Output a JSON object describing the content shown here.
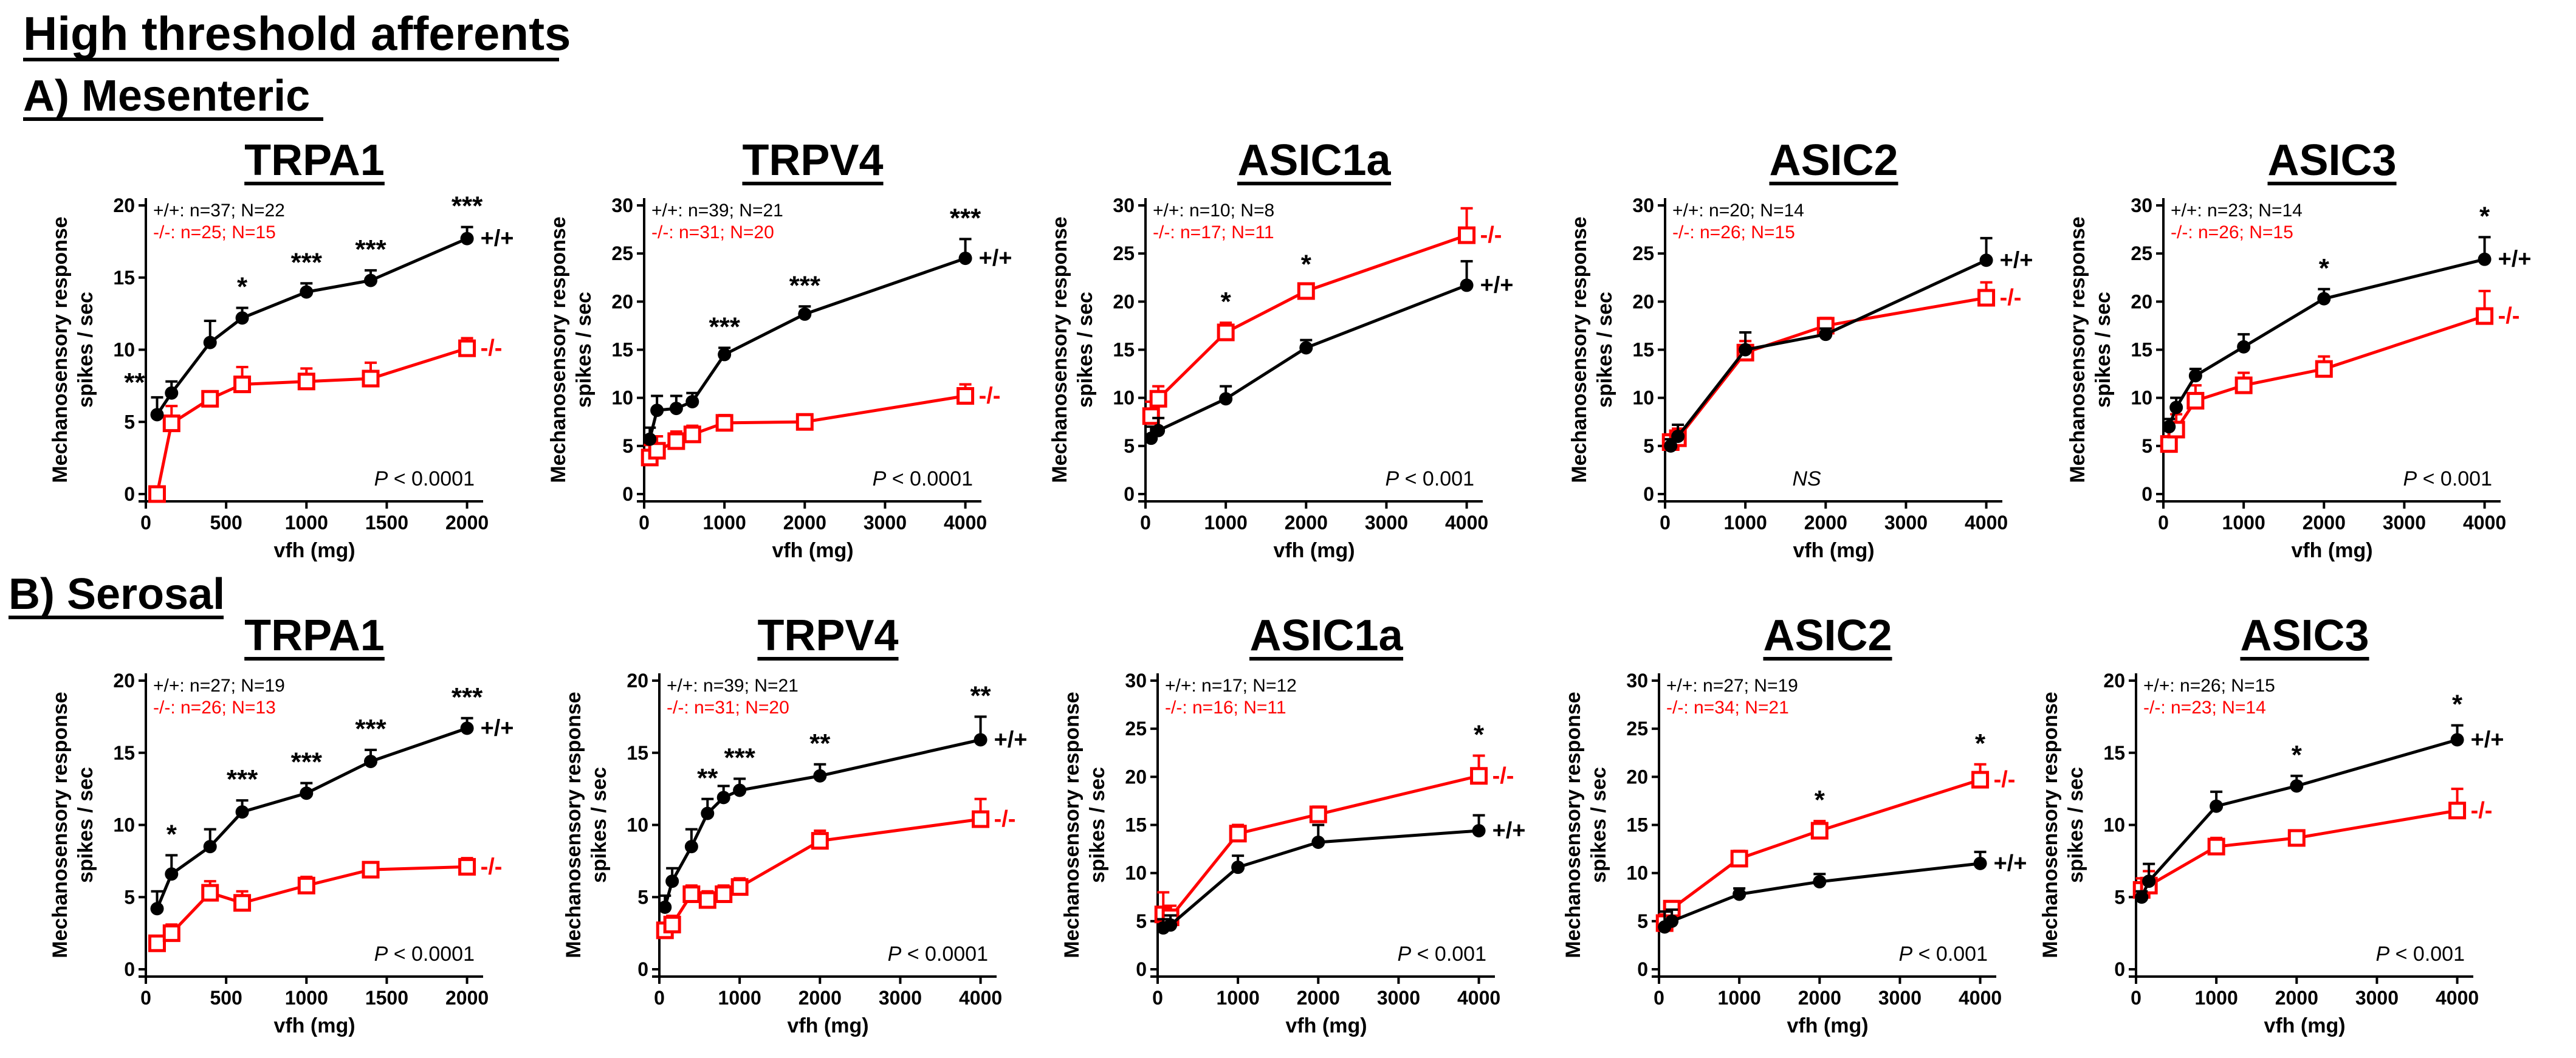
{
  "figure": {
    "title": "High threshold afferents",
    "sections": [
      "A) Mesenteric",
      "B) Serosal"
    ]
  },
  "colors": {
    "wt": "#000000",
    "ko": "#ff0000"
  },
  "chart_data": [
    {
      "type": "line",
      "section": "A) Mesenteric",
      "title": "TRPA1",
      "xlabel": "vfh (mg)",
      "ylabel": "Mechanosensory response\nspikes / sec",
      "xlim": [
        0,
        2100
      ],
      "xticks": [
        "0",
        "500",
        "1000",
        "1500",
        "2000"
      ],
      "xtick_values": [
        0,
        500,
        1000,
        1500,
        2000
      ],
      "ylim": [
        0,
        20
      ],
      "yticks": [
        "0",
        "5",
        "10",
        "15",
        "20"
      ],
      "ytick_values": [
        0,
        5,
        10,
        15,
        20
      ],
      "n_wt": "+/+: n=37; N=22",
      "n_ko": "-/-: n=25; N=15",
      "pvalue_prefix": "P",
      "pvalue_rest": " < 0.0001",
      "series": [
        {
          "name": "+/+",
          "x": [
            70,
            160,
            400,
            600,
            1000,
            1400,
            2000
          ],
          "y": [
            5.5,
            7,
            10.5,
            12.2,
            14,
            14.8,
            17.7
          ],
          "err": [
            1.2,
            0.8,
            1.5,
            0.7,
            0.6,
            0.7,
            0.8
          ]
        },
        {
          "name": "-/-",
          "x": [
            70,
            160,
            400,
            600,
            1000,
            1400,
            2000
          ],
          "y": [
            0,
            4.9,
            6.6,
            7.6,
            7.8,
            8,
            10.1
          ],
          "err": [
            0,
            1.2,
            0.5,
            1.2,
            0.9,
            1.1,
            0.7
          ]
        }
      ],
      "sig": [
        {
          "x": 70,
          "label": "**"
        },
        {
          "x": 600,
          "label": "*"
        },
        {
          "x": 1000,
          "label": "***"
        },
        {
          "x": 1400,
          "label": "***"
        },
        {
          "x": 2000,
          "label": "***"
        }
      ]
    },
    {
      "type": "line",
      "section": "A) Mesenteric",
      "title": "TRPV4",
      "xlabel": "vfh (mg)",
      "ylabel": "Mechanosensory response\nspikes / sec",
      "xlim": [
        0,
        4200
      ],
      "xticks": [
        "0",
        "1000",
        "2000",
        "3000",
        "4000"
      ],
      "xtick_values": [
        0,
        1000,
        2000,
        3000,
        4000
      ],
      "ylim": [
        0,
        30
      ],
      "yticks": [
        "0",
        "5",
        "10",
        "15",
        "20",
        "25",
        "30"
      ],
      "ytick_values": [
        0,
        5,
        10,
        15,
        20,
        25,
        30
      ],
      "n_wt": "+/+: n=39; N=21",
      "n_ko": "-/-: n=31; N=20",
      "pvalue_prefix": "P",
      "pvalue_rest": " < 0.0001",
      "series": [
        {
          "name": "+/+",
          "x": [
            70,
            160,
            400,
            600,
            1000,
            2000,
            4000
          ],
          "y": [
            5.7,
            8.7,
            8.9,
            9.6,
            14.5,
            18.7,
            24.5
          ],
          "err": [
            1.2,
            1.5,
            1.3,
            0.9,
            0.7,
            0.8,
            2
          ]
        },
        {
          "name": "-/-",
          "x": [
            70,
            160,
            400,
            600,
            1000,
            2000,
            4000
          ],
          "y": [
            3.8,
            4.5,
            5.5,
            6.2,
            7.4,
            7.5,
            10.2
          ],
          "err": [
            1.3,
            1.5,
            1,
            0.9,
            0.8,
            0.6,
            1.2
          ]
        }
      ],
      "sig": [
        {
          "x": 1000,
          "label": "***"
        },
        {
          "x": 2000,
          "label": "***"
        },
        {
          "x": 4000,
          "label": "***"
        }
      ]
    },
    {
      "type": "line",
      "section": "A) Mesenteric",
      "title": "ASIC1a",
      "xlabel": "vfh (mg)",
      "ylabel": "Mechanosensory response\nspikes / sec",
      "xlim": [
        0,
        4200
      ],
      "xticks": [
        "0",
        "1000",
        "2000",
        "3000",
        "4000"
      ],
      "xtick_values": [
        0,
        1000,
        2000,
        3000,
        4000
      ],
      "ylim": [
        0,
        30
      ],
      "yticks": [
        "0",
        "5",
        "10",
        "15",
        "20",
        "25",
        "30"
      ],
      "ytick_values": [
        0,
        5,
        10,
        15,
        20,
        25,
        30
      ],
      "n_wt": "+/+: n=10; N=8",
      "n_ko": "-/-: n=17; N=11",
      "pvalue_prefix": "P",
      "pvalue_rest": " < 0.001",
      "series": [
        {
          "name": "+/+",
          "x": [
            70,
            160,
            1000,
            2000,
            4000
          ],
          "y": [
            5.8,
            6.6,
            9.9,
            15.2,
            21.7
          ],
          "err": [
            1.2,
            1.3,
            1.3,
            0.8,
            2.5
          ]
        },
        {
          "name": "-/-",
          "x": [
            70,
            160,
            1000,
            2000,
            4000
          ],
          "y": [
            8.1,
            9.9,
            16.8,
            21.1,
            26.9
          ],
          "err": [
            1.5,
            1.3,
            1,
            0.6,
            2.8
          ]
        }
      ],
      "sig": [
        {
          "x": 1000,
          "label": "*"
        },
        {
          "x": 2000,
          "label": "*"
        }
      ]
    },
    {
      "type": "line",
      "section": "A) Mesenteric",
      "title": "ASIC2",
      "xlabel": "vfh (mg)",
      "ylabel": "Mechanosensory response\nspikes / sec",
      "xlim": [
        0,
        4200
      ],
      "xticks": [
        "0",
        "1000",
        "2000",
        "3000",
        "4000"
      ],
      "xtick_values": [
        0,
        1000,
        2000,
        3000,
        4000
      ],
      "ylim": [
        0,
        30
      ],
      "yticks": [
        "0",
        "5",
        "10",
        "15",
        "20",
        "25",
        "30"
      ],
      "ytick_values": [
        0,
        5,
        10,
        15,
        20,
        25,
        30
      ],
      "n_wt": "+/+: n=20; N=14",
      "n_ko": "-/-: n=26; N=15",
      "pvalue_prefix": "NS",
      "pvalue_rest": "",
      "series": [
        {
          "name": "+/+",
          "x": [
            70,
            160,
            1000,
            2000,
            4000
          ],
          "y": [
            5,
            6,
            15,
            16.6,
            24.3
          ],
          "err": [
            0.7,
            1.2,
            1.8,
            0.6,
            2.3
          ]
        },
        {
          "name": "-/-",
          "x": [
            70,
            160,
            1000,
            2000,
            4000
          ],
          "y": [
            5.4,
            5.8,
            14.7,
            17.5,
            20.4
          ],
          "err": [
            0.8,
            1,
            1.2,
            0.8,
            1.6
          ]
        }
      ],
      "sig": []
    },
    {
      "type": "line",
      "section": "A) Mesenteric",
      "title": "ASIC3",
      "xlabel": "vfh (mg)",
      "ylabel": "Mechanosensory response\nspikes / sec",
      "xlim": [
        0,
        4200
      ],
      "xticks": [
        "0",
        "1000",
        "2000",
        "3000",
        "4000"
      ],
      "xtick_values": [
        0,
        1000,
        2000,
        3000,
        4000
      ],
      "ylim": [
        0,
        30
      ],
      "yticks": [
        "0",
        "5",
        "10",
        "15",
        "20",
        "25",
        "30"
      ],
      "ytick_values": [
        0,
        5,
        10,
        15,
        20,
        25,
        30
      ],
      "n_wt": "+/+: n=23; N=14",
      "n_ko": "-/-: n=26; N=15",
      "pvalue_prefix": "P",
      "pvalue_rest": " < 0.001",
      "series": [
        {
          "name": "+/+",
          "x": [
            70,
            160,
            400,
            1000,
            2000,
            4000
          ],
          "y": [
            7,
            9,
            12.3,
            15.3,
            20.3,
            24.4
          ],
          "err": [
            0.8,
            1,
            0.7,
            1.3,
            1,
            2.3
          ]
        },
        {
          "name": "-/-",
          "x": [
            70,
            160,
            400,
            1000,
            2000,
            4000
          ],
          "y": [
            5.2,
            6.7,
            9.7,
            11.3,
            13,
            18.5
          ],
          "err": [
            0.8,
            1.6,
            1.6,
            1.3,
            1.3,
            2.6
          ]
        }
      ],
      "sig": [
        {
          "x": 2000,
          "label": "*"
        },
        {
          "x": 4000,
          "label": "*"
        }
      ]
    },
    {
      "type": "line",
      "section": "B) Serosal",
      "title": "TRPA1",
      "xlabel": "vfh (mg)",
      "ylabel": "Mechanosensory response\nspikes / sec",
      "xlim": [
        0,
        2100
      ],
      "xticks": [
        "0",
        "500",
        "1000",
        "1500",
        "2000"
      ],
      "xtick_values": [
        0,
        500,
        1000,
        1500,
        2000
      ],
      "ylim": [
        0,
        20
      ],
      "yticks": [
        "0",
        "5",
        "10",
        "15",
        "20"
      ],
      "ytick_values": [
        0,
        5,
        10,
        15,
        20
      ],
      "n_wt": "+/+: n=27; N=19",
      "n_ko": "-/-: n=26; N=13",
      "pvalue_prefix": "P",
      "pvalue_rest": " < 0.0001",
      "series": [
        {
          "name": "+/+",
          "x": [
            70,
            160,
            400,
            600,
            1000,
            1400,
            2000
          ],
          "y": [
            4.2,
            6.6,
            8.5,
            10.9,
            12.2,
            14.4,
            16.7
          ],
          "err": [
            1.2,
            1.3,
            1.2,
            0.8,
            0.7,
            0.8,
            0.7
          ]
        },
        {
          "name": "-/-",
          "x": [
            70,
            160,
            400,
            600,
            1000,
            1400,
            2000
          ],
          "y": [
            1.8,
            2.5,
            5.3,
            4.6,
            5.8,
            6.9,
            7.1
          ],
          "err": [
            0.5,
            0.6,
            0.8,
            0.8,
            0.6,
            0.5,
            0.6
          ]
        }
      ],
      "sig": [
        {
          "x": 160,
          "label": "*"
        },
        {
          "x": 600,
          "label": "***"
        },
        {
          "x": 1000,
          "label": "***"
        },
        {
          "x": 1400,
          "label": "***"
        },
        {
          "x": 2000,
          "label": "***"
        }
      ]
    },
    {
      "type": "line",
      "section": "B) Serosal",
      "title": "TRPV4",
      "xlabel": "vfh (mg)",
      "ylabel": "Mechanosensory response\nspikes / sec",
      "xlim": [
        0,
        4200
      ],
      "xticks": [
        "0",
        "1000",
        "2000",
        "3000",
        "4000"
      ],
      "xtick_values": [
        0,
        1000,
        2000,
        3000,
        4000
      ],
      "ylim": [
        0,
        20
      ],
      "yticks": [
        "0",
        "5",
        "10",
        "15",
        "20"
      ],
      "ytick_values": [
        0,
        5,
        10,
        15,
        20
      ],
      "n_wt": "+/+: n=39; N=21",
      "n_ko": "-/-: n=31; N=20",
      "pvalue_prefix": "P",
      "pvalue_rest": " < 0.0001",
      "series": [
        {
          "name": "+/+",
          "x": [
            70,
            160,
            400,
            600,
            800,
            1000,
            2000,
            4000
          ],
          "y": [
            4.3,
            6.1,
            8.5,
            10.8,
            11.9,
            12.4,
            13.4,
            15.9
          ],
          "err": [
            0.8,
            0.9,
            1.2,
            1,
            0.8,
            0.8,
            0.8,
            1.6
          ]
        },
        {
          "name": "-/-",
          "x": [
            70,
            160,
            400,
            600,
            800,
            1000,
            2000,
            4000
          ],
          "y": [
            2.7,
            3.1,
            5.2,
            4.8,
            5.2,
            5.7,
            8.9,
            10.4
          ],
          "err": [
            0.5,
            0.6,
            0.6,
            0.6,
            0.6,
            0.6,
            0.7,
            1.4
          ]
        }
      ],
      "sig": [
        {
          "x": 600,
          "label": "**"
        },
        {
          "x": 1000,
          "label": "***"
        },
        {
          "x": 2000,
          "label": "**"
        },
        {
          "x": 4000,
          "label": "**"
        }
      ]
    },
    {
      "type": "line",
      "section": "B) Serosal",
      "title": "ASIC1a",
      "xlabel": "vfh (mg)",
      "ylabel": "Mechanosensory response\nspikes / sec",
      "xlim": [
        0,
        4200
      ],
      "xticks": [
        "0",
        "1000",
        "2000",
        "3000",
        "4000"
      ],
      "xtick_values": [
        0,
        1000,
        2000,
        3000,
        4000
      ],
      "ylim": [
        0,
        30
      ],
      "yticks": [
        "0",
        "5",
        "10",
        "15",
        "20",
        "25",
        "30"
      ],
      "ytick_values": [
        0,
        5,
        10,
        15,
        20,
        25,
        30
      ],
      "n_wt": "+/+: n=17; N=12",
      "n_ko": "-/-: n=16; N=11",
      "pvalue_prefix": "P",
      "pvalue_rest": " < 0.001",
      "series": [
        {
          "name": "+/+",
          "x": [
            70,
            160,
            1000,
            2000,
            4000
          ],
          "y": [
            4.3,
            4.6,
            10.6,
            13.2,
            14.4
          ],
          "err": [
            0.9,
            1,
            1.2,
            1.8,
            1.6
          ]
        },
        {
          "name": "-/-",
          "x": [
            70,
            160,
            1000,
            2000,
            4000
          ],
          "y": [
            5.7,
            5.4,
            14.1,
            16.1,
            20.1
          ],
          "err": [
            2.3,
            1.2,
            0.9,
            0.8,
            2.1
          ]
        }
      ],
      "sig": [
        {
          "x": 4000,
          "label": "*"
        }
      ]
    },
    {
      "type": "line",
      "section": "B) Serosal",
      "title": "ASIC2",
      "xlabel": "vfh (mg)",
      "ylabel": "Mechanosensory response\nspikes / sec",
      "xlim": [
        0,
        4200
      ],
      "xticks": [
        "0",
        "1000",
        "2000",
        "3000",
        "4000"
      ],
      "xtick_values": [
        0,
        1000,
        2000,
        3000,
        4000
      ],
      "ylim": [
        0,
        30
      ],
      "yticks": [
        "0",
        "5",
        "10",
        "15",
        "20",
        "25",
        "30"
      ],
      "ytick_values": [
        0,
        5,
        10,
        15,
        20,
        25,
        30
      ],
      "n_wt": "+/+: n=27; N=19",
      "n_ko": "-/-: n=34; N=21",
      "pvalue_prefix": "P",
      "pvalue_rest": " < 0.001",
      "series": [
        {
          "name": "+/+",
          "x": [
            70,
            160,
            1000,
            2000,
            4000
          ],
          "y": [
            4.4,
            5,
            7.8,
            9.1,
            11
          ],
          "err": [
            1.6,
            1.2,
            0.6,
            0.8,
            1.2
          ]
        },
        {
          "name": "-/-",
          "x": [
            70,
            160,
            1000,
            2000,
            4000
          ],
          "y": [
            4.8,
            6.3,
            11.5,
            14.4,
            19.7
          ],
          "err": [
            0.9,
            0.7,
            0.8,
            1,
            1.6
          ]
        }
      ],
      "sig": [
        {
          "x": 2000,
          "label": "*"
        },
        {
          "x": 4000,
          "label": "*"
        }
      ]
    },
    {
      "type": "line",
      "section": "B) Serosal",
      "title": "ASIC3",
      "xlabel": "vfh (mg)",
      "ylabel": "Mechanosensory response\nspikes / sec",
      "xlim": [
        0,
        4200
      ],
      "xticks": [
        "0",
        "1000",
        "2000",
        "3000",
        "4000"
      ],
      "xtick_values": [
        0,
        1000,
        2000,
        3000,
        4000
      ],
      "ylim": [
        0,
        20
      ],
      "yticks": [
        "0",
        "5",
        "10",
        "15",
        "20"
      ],
      "ytick_values": [
        0,
        5,
        10,
        15,
        20
      ],
      "n_wt": "+/+: n=26; N=15",
      "n_ko": "-/-: n=23; N=14",
      "pvalue_prefix": "P",
      "pvalue_rest": " < 0.001",
      "series": [
        {
          "name": "+/+",
          "x": [
            70,
            160,
            1000,
            2000,
            4000
          ],
          "y": [
            5,
            6.1,
            11.3,
            12.7,
            15.9
          ],
          "err": [
            0.4,
            1.2,
            1,
            0.7,
            1
          ]
        },
        {
          "name": "-/-",
          "x": [
            70,
            160,
            1000,
            2000,
            4000
          ],
          "y": [
            5.5,
            5.8,
            8.5,
            9.1,
            11
          ],
          "err": [
            0.8,
            1,
            0.6,
            0.5,
            1.5
          ]
        }
      ],
      "sig": [
        {
          "x": 2000,
          "label": "*"
        },
        {
          "x": 4000,
          "label": "*"
        }
      ]
    }
  ]
}
